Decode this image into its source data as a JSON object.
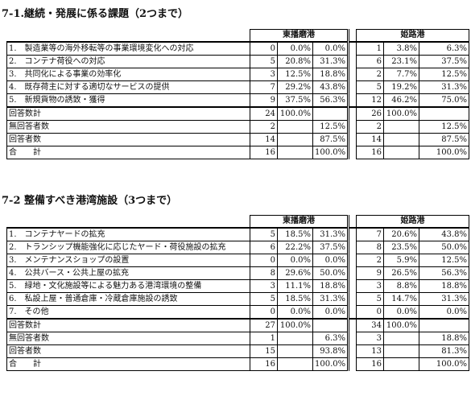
{
  "section1": {
    "title": "7-1.継続・発展に係る課題（2つまで）",
    "col_headers": [
      "東播磨港",
      "姫路港"
    ],
    "rows": [
      {
        "label": "1.　製造業等の海外移転等の事業環境変化への対応",
        "a_n": "0",
        "a_p1": "0.0%",
        "a_p2": "0.0%",
        "b_n": "1",
        "b_p1": "3.8%",
        "b_p2": "6.3%"
      },
      {
        "label": "2.　コンテナ荷役への対応",
        "a_n": "5",
        "a_p1": "20.8%",
        "a_p2": "31.3%",
        "b_n": "6",
        "b_p1": "23.1%",
        "b_p2": "37.5%"
      },
      {
        "label": "3.　共同化による事業の効率化",
        "a_n": "3",
        "a_p1": "12.5%",
        "a_p2": "18.8%",
        "b_n": "2",
        "b_p1": "7.7%",
        "b_p2": "12.5%"
      },
      {
        "label": "4.　既存荷主に対する適切なサービスの提供",
        "a_n": "7",
        "a_p1": "29.2%",
        "a_p2": "43.8%",
        "b_n": "5",
        "b_p1": "19.2%",
        "b_p2": "31.3%"
      },
      {
        "label": "5.　新規貨物の誘致・獲得",
        "a_n": "9",
        "a_p1": "37.5%",
        "a_p2": "56.3%",
        "b_n": "12",
        "b_p1": "46.2%",
        "b_p2": "75.0%"
      }
    ],
    "summary": [
      {
        "label": "回答数計",
        "a_n": "24",
        "a_p1": "100.0%",
        "a_p2": "",
        "b_n": "26",
        "b_p1": "100.0%",
        "b_p2": ""
      },
      {
        "label": "無回答者数",
        "a_n": "2",
        "a_p1": "",
        "a_p2": "12.5%",
        "b_n": "2",
        "b_p1": "",
        "b_p2": "12.5%"
      },
      {
        "label": "回答者数",
        "a_n": "14",
        "a_p1": "",
        "a_p2": "87.5%",
        "b_n": "14",
        "b_p1": "",
        "b_p2": "87.5%"
      },
      {
        "label": "合　　計",
        "a_n": "16",
        "a_p1": "",
        "a_p2": "100.0%",
        "b_n": "16",
        "b_p1": "",
        "b_p2": "100.0%"
      }
    ]
  },
  "section2": {
    "title": "7-2 整備すべき港湾施設（3つまで）",
    "col_headers": [
      "東播磨港",
      "姫路港"
    ],
    "rows": [
      {
        "label": "1.　コンテナヤードの拡充",
        "a_n": "5",
        "a_p1": "18.5%",
        "a_p2": "31.3%",
        "b_n": "7",
        "b_p1": "20.6%",
        "b_p2": "43.8%"
      },
      {
        "label": "2.　トランシップ機能強化に応じたヤード・荷役施設の拡充",
        "a_n": "6",
        "a_p1": "22.2%",
        "a_p2": "37.5%",
        "b_n": "8",
        "b_p1": "23.5%",
        "b_p2": "50.0%"
      },
      {
        "label": "3.　メンテナンスショップの設置",
        "a_n": "0",
        "a_p1": "0.0%",
        "a_p2": "0.0%",
        "b_n": "2",
        "b_p1": "5.9%",
        "b_p2": "12.5%"
      },
      {
        "label": "4.　公共バース・公共上屋の拡充",
        "a_n": "8",
        "a_p1": "29.6%",
        "a_p2": "50.0%",
        "b_n": "9",
        "b_p1": "26.5%",
        "b_p2": "56.3%"
      },
      {
        "label": "5.　緑地・文化施設等による魅力ある港湾環境の整備",
        "a_n": "3",
        "a_p1": "11.1%",
        "a_p2": "18.8%",
        "b_n": "3",
        "b_p1": "8.8%",
        "b_p2": "18.8%"
      },
      {
        "label": "6.　私設上屋・普通倉庫・冷蔵倉庫施設の誘致",
        "a_n": "5",
        "a_p1": "18.5%",
        "a_p2": "31.3%",
        "b_n": "5",
        "b_p1": "14.7%",
        "b_p2": "31.3%"
      },
      {
        "label": "7.　その他",
        "a_n": "0",
        "a_p1": "0.0%",
        "a_p2": "0.0%",
        "b_n": "0",
        "b_p1": "0.0%",
        "b_p2": "0.0%"
      }
    ],
    "summary": [
      {
        "label": "回答数計",
        "a_n": "27",
        "a_p1": "100.0%",
        "a_p2": "",
        "b_n": "34",
        "b_p1": "100.0%",
        "b_p2": ""
      },
      {
        "label": "無回答者数",
        "a_n": "1",
        "a_p1": "",
        "a_p2": "6.3%",
        "b_n": "3",
        "b_p1": "",
        "b_p2": "18.8%"
      },
      {
        "label": "回答者数",
        "a_n": "15",
        "a_p1": "",
        "a_p2": "93.8%",
        "b_n": "13",
        "b_p1": "",
        "b_p2": "81.3%"
      },
      {
        "label": "合　　計",
        "a_n": "16",
        "a_p1": "",
        "a_p2": "100.0%",
        "b_n": "16",
        "b_p1": "",
        "b_p2": "100.0%"
      }
    ]
  }
}
